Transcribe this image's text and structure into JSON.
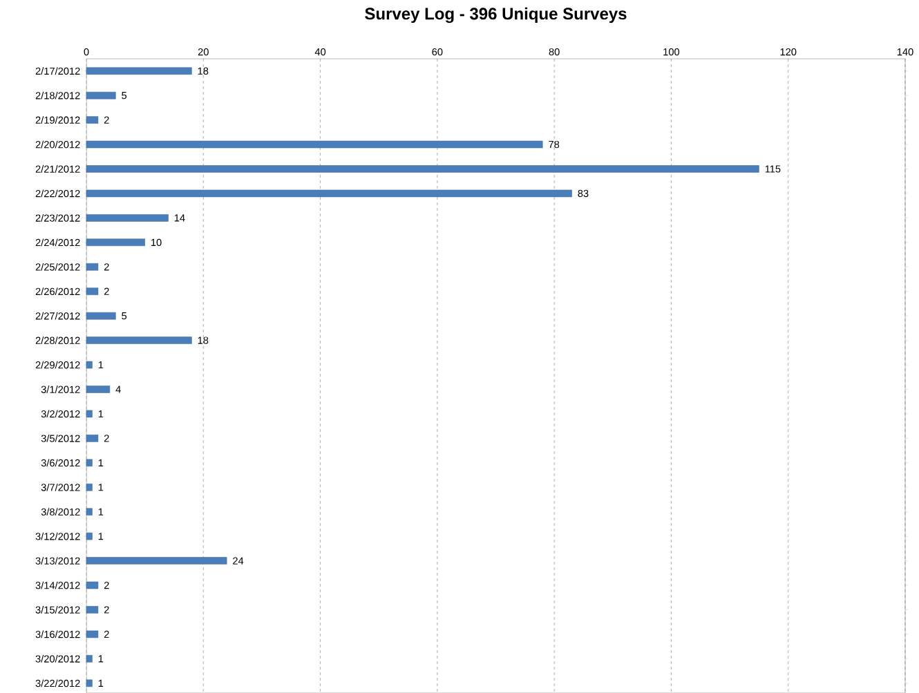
{
  "chart_data": {
    "type": "bar",
    "orientation": "horizontal",
    "title": "Survey Log - 396 Unique Surveys",
    "categories": [
      "2/17/2012",
      "2/18/2012",
      "2/19/2012",
      "2/20/2012",
      "2/21/2012",
      "2/22/2012",
      "2/23/2012",
      "2/24/2012",
      "2/25/2012",
      "2/26/2012",
      "2/27/2012",
      "2/28/2012",
      "2/29/2012",
      "3/1/2012",
      "3/2/2012",
      "3/5/2012",
      "3/6/2012",
      "3/7/2012",
      "3/8/2012",
      "3/12/2012",
      "3/13/2012",
      "3/14/2012",
      "3/15/2012",
      "3/16/2012",
      "3/20/2012",
      "3/22/2012"
    ],
    "values": [
      18,
      5,
      2,
      78,
      115,
      83,
      14,
      10,
      2,
      2,
      5,
      18,
      1,
      4,
      1,
      2,
      1,
      1,
      1,
      1,
      24,
      2,
      2,
      2,
      1,
      1
    ],
    "color": "#4a7ebb",
    "xlim": [
      0,
      140
    ],
    "xticks": [
      0,
      20,
      40,
      60,
      80,
      100,
      120,
      140
    ],
    "grid": "x",
    "data_labels": true
  }
}
